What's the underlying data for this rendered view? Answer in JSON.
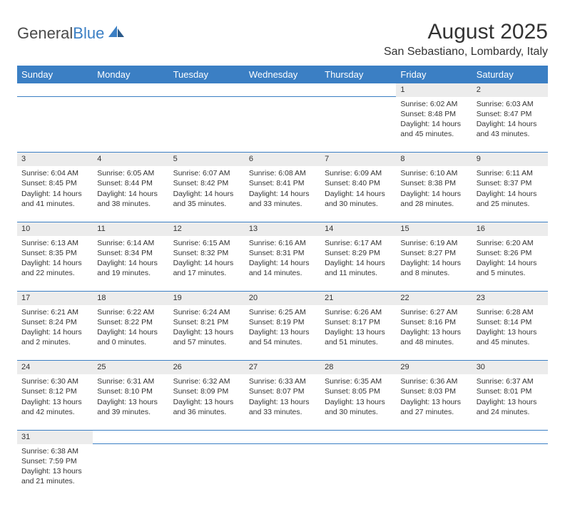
{
  "logo": {
    "word1": "General",
    "word2": "Blue"
  },
  "title": "August 2025",
  "location": "San Sebastiano, Lombardy, Italy",
  "colors": {
    "header_bg": "#3b7fc4",
    "header_text": "#ffffff",
    "daynum_bg": "#ececec",
    "border": "#3b7fc4",
    "text": "#333333",
    "logo_gray": "#4a4a4a",
    "logo_blue": "#3b7fc4"
  },
  "weekdays": [
    "Sunday",
    "Monday",
    "Tuesday",
    "Wednesday",
    "Thursday",
    "Friday",
    "Saturday"
  ],
  "weeks": [
    [
      null,
      null,
      null,
      null,
      null,
      {
        "n": "1",
        "sr": "Sunrise: 6:02 AM",
        "ss": "Sunset: 8:48 PM",
        "dl": "Daylight: 14 hours and 45 minutes."
      },
      {
        "n": "2",
        "sr": "Sunrise: 6:03 AM",
        "ss": "Sunset: 8:47 PM",
        "dl": "Daylight: 14 hours and 43 minutes."
      }
    ],
    [
      {
        "n": "3",
        "sr": "Sunrise: 6:04 AM",
        "ss": "Sunset: 8:45 PM",
        "dl": "Daylight: 14 hours and 41 minutes."
      },
      {
        "n": "4",
        "sr": "Sunrise: 6:05 AM",
        "ss": "Sunset: 8:44 PM",
        "dl": "Daylight: 14 hours and 38 minutes."
      },
      {
        "n": "5",
        "sr": "Sunrise: 6:07 AM",
        "ss": "Sunset: 8:42 PM",
        "dl": "Daylight: 14 hours and 35 minutes."
      },
      {
        "n": "6",
        "sr": "Sunrise: 6:08 AM",
        "ss": "Sunset: 8:41 PM",
        "dl": "Daylight: 14 hours and 33 minutes."
      },
      {
        "n": "7",
        "sr": "Sunrise: 6:09 AM",
        "ss": "Sunset: 8:40 PM",
        "dl": "Daylight: 14 hours and 30 minutes."
      },
      {
        "n": "8",
        "sr": "Sunrise: 6:10 AM",
        "ss": "Sunset: 8:38 PM",
        "dl": "Daylight: 14 hours and 28 minutes."
      },
      {
        "n": "9",
        "sr": "Sunrise: 6:11 AM",
        "ss": "Sunset: 8:37 PM",
        "dl": "Daylight: 14 hours and 25 minutes."
      }
    ],
    [
      {
        "n": "10",
        "sr": "Sunrise: 6:13 AM",
        "ss": "Sunset: 8:35 PM",
        "dl": "Daylight: 14 hours and 22 minutes."
      },
      {
        "n": "11",
        "sr": "Sunrise: 6:14 AM",
        "ss": "Sunset: 8:34 PM",
        "dl": "Daylight: 14 hours and 19 minutes."
      },
      {
        "n": "12",
        "sr": "Sunrise: 6:15 AM",
        "ss": "Sunset: 8:32 PM",
        "dl": "Daylight: 14 hours and 17 minutes."
      },
      {
        "n": "13",
        "sr": "Sunrise: 6:16 AM",
        "ss": "Sunset: 8:31 PM",
        "dl": "Daylight: 14 hours and 14 minutes."
      },
      {
        "n": "14",
        "sr": "Sunrise: 6:17 AM",
        "ss": "Sunset: 8:29 PM",
        "dl": "Daylight: 14 hours and 11 minutes."
      },
      {
        "n": "15",
        "sr": "Sunrise: 6:19 AM",
        "ss": "Sunset: 8:27 PM",
        "dl": "Daylight: 14 hours and 8 minutes."
      },
      {
        "n": "16",
        "sr": "Sunrise: 6:20 AM",
        "ss": "Sunset: 8:26 PM",
        "dl": "Daylight: 14 hours and 5 minutes."
      }
    ],
    [
      {
        "n": "17",
        "sr": "Sunrise: 6:21 AM",
        "ss": "Sunset: 8:24 PM",
        "dl": "Daylight: 14 hours and 2 minutes."
      },
      {
        "n": "18",
        "sr": "Sunrise: 6:22 AM",
        "ss": "Sunset: 8:22 PM",
        "dl": "Daylight: 14 hours and 0 minutes."
      },
      {
        "n": "19",
        "sr": "Sunrise: 6:24 AM",
        "ss": "Sunset: 8:21 PM",
        "dl": "Daylight: 13 hours and 57 minutes."
      },
      {
        "n": "20",
        "sr": "Sunrise: 6:25 AM",
        "ss": "Sunset: 8:19 PM",
        "dl": "Daylight: 13 hours and 54 minutes."
      },
      {
        "n": "21",
        "sr": "Sunrise: 6:26 AM",
        "ss": "Sunset: 8:17 PM",
        "dl": "Daylight: 13 hours and 51 minutes."
      },
      {
        "n": "22",
        "sr": "Sunrise: 6:27 AM",
        "ss": "Sunset: 8:16 PM",
        "dl": "Daylight: 13 hours and 48 minutes."
      },
      {
        "n": "23",
        "sr": "Sunrise: 6:28 AM",
        "ss": "Sunset: 8:14 PM",
        "dl": "Daylight: 13 hours and 45 minutes."
      }
    ],
    [
      {
        "n": "24",
        "sr": "Sunrise: 6:30 AM",
        "ss": "Sunset: 8:12 PM",
        "dl": "Daylight: 13 hours and 42 minutes."
      },
      {
        "n": "25",
        "sr": "Sunrise: 6:31 AM",
        "ss": "Sunset: 8:10 PM",
        "dl": "Daylight: 13 hours and 39 minutes."
      },
      {
        "n": "26",
        "sr": "Sunrise: 6:32 AM",
        "ss": "Sunset: 8:09 PM",
        "dl": "Daylight: 13 hours and 36 minutes."
      },
      {
        "n": "27",
        "sr": "Sunrise: 6:33 AM",
        "ss": "Sunset: 8:07 PM",
        "dl": "Daylight: 13 hours and 33 minutes."
      },
      {
        "n": "28",
        "sr": "Sunrise: 6:35 AM",
        "ss": "Sunset: 8:05 PM",
        "dl": "Daylight: 13 hours and 30 minutes."
      },
      {
        "n": "29",
        "sr": "Sunrise: 6:36 AM",
        "ss": "Sunset: 8:03 PM",
        "dl": "Daylight: 13 hours and 27 minutes."
      },
      {
        "n": "30",
        "sr": "Sunrise: 6:37 AM",
        "ss": "Sunset: 8:01 PM",
        "dl": "Daylight: 13 hours and 24 minutes."
      }
    ],
    [
      {
        "n": "31",
        "sr": "Sunrise: 6:38 AM",
        "ss": "Sunset: 7:59 PM",
        "dl": "Daylight: 13 hours and 21 minutes."
      },
      null,
      null,
      null,
      null,
      null,
      null
    ]
  ]
}
